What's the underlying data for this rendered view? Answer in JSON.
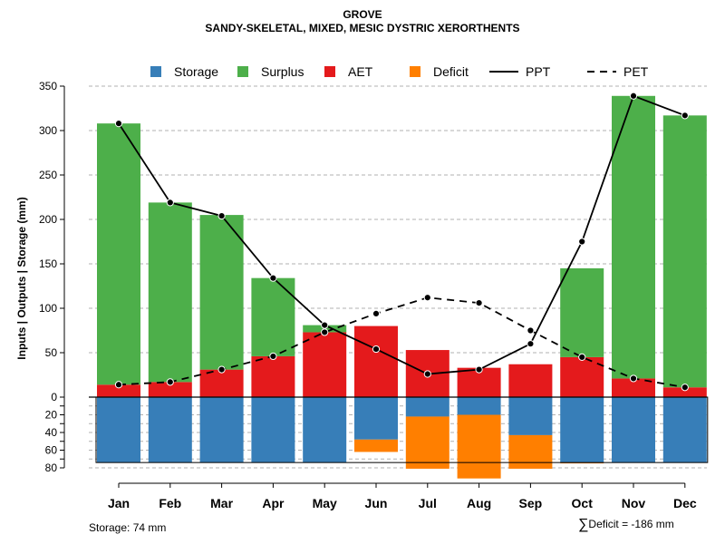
{
  "title": "GROVE",
  "subtitle": "SANDY-SKELETAL, MIXED, MESIC DYSTRIC XERORTHENTS",
  "ylabel": "Inputs | Outputs | Storage     (mm)",
  "footer": {
    "storage_label": "Storage: 74 mm",
    "deficit_sigma": "∑",
    "deficit_label": "Deficit = -186 mm"
  },
  "colors": {
    "storage": "#377EB8",
    "surplus": "#4DAF4A",
    "aet": "#E41A1C",
    "deficit": "#FF7F00",
    "line": "#000000",
    "grid": "#b0b0b0"
  },
  "legend": [
    {
      "key": "storage",
      "label": "Storage",
      "kind": "box"
    },
    {
      "key": "surplus",
      "label": "Surplus",
      "kind": "box"
    },
    {
      "key": "aet",
      "label": "AET",
      "kind": "box"
    },
    {
      "key": "deficit",
      "label": "Deficit",
      "kind": "box"
    },
    {
      "key": "ppt",
      "label": "PPT",
      "kind": "solid"
    },
    {
      "key": "pet",
      "label": "PET",
      "kind": "dashed"
    }
  ],
  "chart_data": {
    "type": "bar",
    "title": "GROVE",
    "subtitle": "SANDY-SKELETAL, MIXED, MESIC DYSTRIC XERORTHENTS",
    "xlabel": "",
    "ylabel": "Inputs | Outputs | Storage     (mm)",
    "ylim_top": [
      0,
      350
    ],
    "ylim_bottom": [
      0,
      80
    ],
    "yticks_top": [
      "0",
      "50",
      "100",
      "150",
      "200",
      "250",
      "300",
      "350"
    ],
    "yticks_bottom": [
      "20",
      "40",
      "60",
      "80"
    ],
    "categories": [
      "Jan",
      "Feb",
      "Mar",
      "Apr",
      "May",
      "Jun",
      "Jul",
      "Aug",
      "Sep",
      "Oct",
      "Nov",
      "Dec"
    ],
    "series": [
      {
        "name": "AET",
        "values": [
          14,
          17,
          31,
          46,
          73,
          80,
          53,
          33,
          37,
          45,
          21,
          11
        ]
      },
      {
        "name": "Surplus",
        "values": [
          294,
          202,
          174,
          88,
          8,
          0,
          0,
          0,
          0,
          100,
          318,
          306
        ]
      },
      {
        "name": "PPT",
        "values": [
          308,
          219,
          204,
          134,
          81,
          54,
          26,
          31,
          60,
          175,
          339,
          317
        ]
      },
      {
        "name": "PET",
        "values": [
          14,
          17,
          31,
          46,
          73,
          94,
          112,
          106,
          75,
          45,
          21,
          11
        ]
      },
      {
        "name": "Storage",
        "values": [
          74,
          74,
          74,
          74,
          74,
          48,
          22,
          20,
          43,
          74,
          74,
          74
        ]
      },
      {
        "name": "Deficit",
        "values": [
          0,
          0,
          0,
          0,
          0,
          14,
          59,
          72,
          38,
          1,
          0,
          0
        ]
      }
    ],
    "storage_capacity": 74,
    "total_deficit": -186
  }
}
